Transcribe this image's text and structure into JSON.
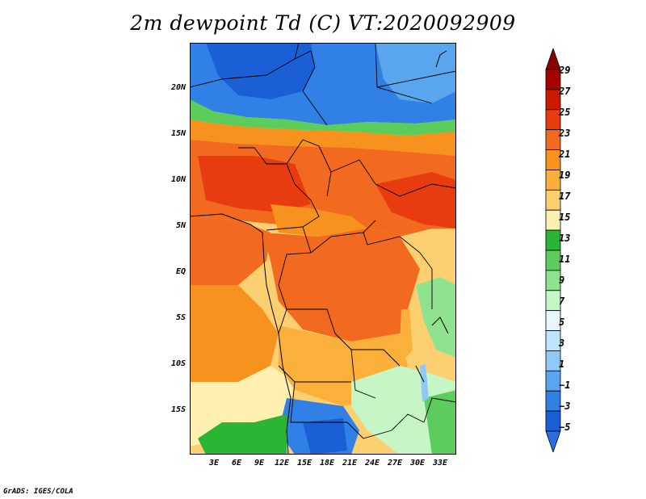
{
  "title": "2m dewpoint Td (C) VT:2020092909",
  "credit": "GrADS: IGES/COLA",
  "axes": {
    "lat_labels": [
      "20N",
      "15N",
      "10N",
      "5N",
      "EQ",
      "5S",
      "10S",
      "15S"
    ],
    "lon_labels": [
      "3E",
      "6E",
      "9E",
      "12E",
      "15E",
      "18E",
      "21E",
      "24E",
      "27E",
      "30E",
      "33E"
    ]
  },
  "colorbar": {
    "labels": [
      "29",
      "27",
      "25",
      "23",
      "21",
      "19",
      "17",
      "15",
      "13",
      "11",
      "9",
      "7",
      "5",
      "3",
      "1",
      "−1",
      "−3",
      "−5"
    ],
    "colors": [
      "#8b0000",
      "#a50000",
      "#cc1a00",
      "#e83c10",
      "#f26a20",
      "#f7921e",
      "#fbb03c",
      "#fcd071",
      "#fef0b0",
      "#2bb535",
      "#5ccd5c",
      "#8fe38f",
      "#c6f5c6",
      "#e6f7ff",
      "#bfe4ff",
      "#8fc9f7",
      "#5aa6ee",
      "#3080e6",
      "#1a5fd6",
      "#2a6fe0"
    ]
  }
}
